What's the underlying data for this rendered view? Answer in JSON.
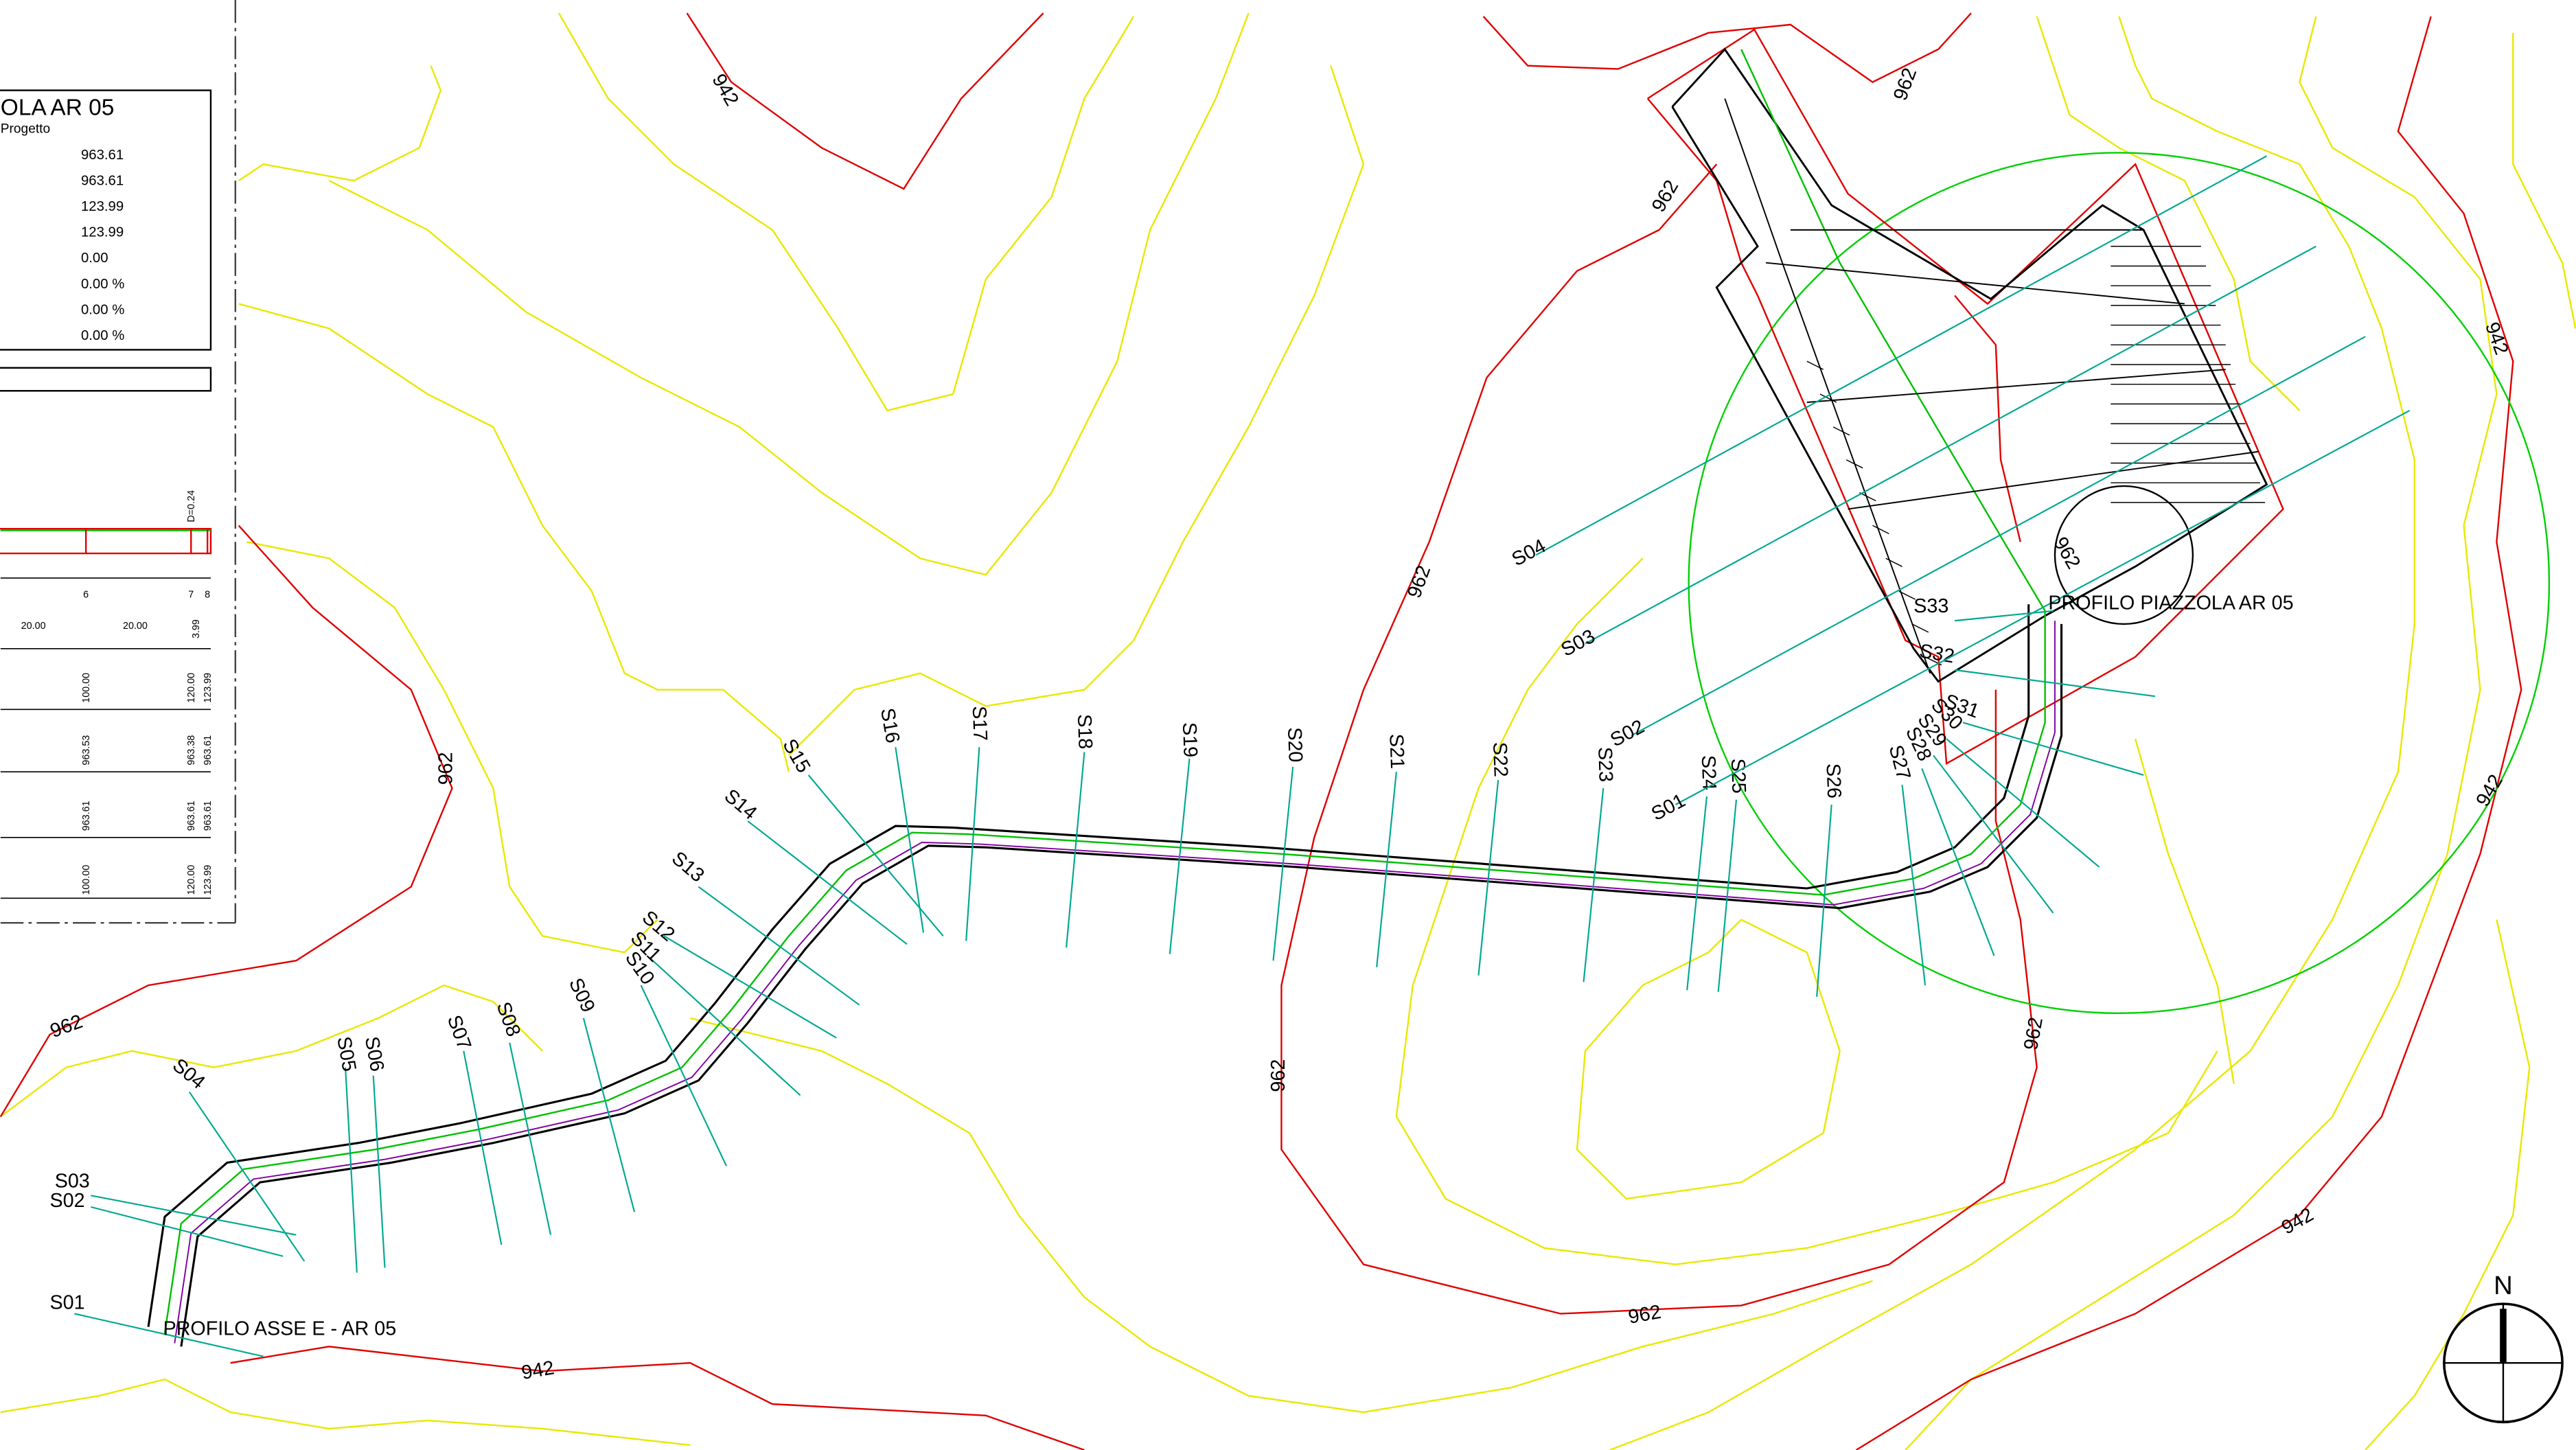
{
  "panel": {
    "title": "OLA AR 05",
    "subtitle": "Progetto",
    "rows": [
      "963.61",
      "963.61",
      "123.99",
      "123.99",
      "0.00",
      "0.00 %",
      "0.00 %",
      "0.00 %"
    ]
  },
  "profile": {
    "grade": "D=0.24",
    "stations": [
      "6",
      "7",
      "8"
    ],
    "distances": [
      "20.00",
      "20.00",
      "3.99"
    ],
    "progressive": [
      "100.00",
      "120.00",
      "123.99"
    ],
    "terrain": [
      "963.53",
      "963.38",
      "963.61"
    ],
    "design": [
      "963.61",
      "963.61",
      "963.61"
    ],
    "design_progressive": [
      "100.00",
      "120.00",
      "123.99"
    ]
  },
  "road_sections": [
    "S01",
    "S02",
    "S03",
    "S04",
    "S05",
    "S06",
    "S07",
    "S08",
    "S09",
    "S10",
    "S11",
    "S12",
    "S13",
    "S14",
    "S15",
    "S16",
    "S17",
    "S18",
    "S19",
    "S20",
    "S21",
    "S22",
    "S23",
    "S24",
    "S25",
    "S26",
    "S27",
    "S28",
    "S29",
    "S30",
    "S31",
    "S32",
    "S33"
  ],
  "plaza_sections": [
    "S01",
    "S02",
    "S03",
    "S04"
  ],
  "contour_labels": [
    "942",
    "962",
    "962",
    "962",
    "962",
    "962",
    "962",
    "962",
    "962",
    "942",
    "942",
    "942",
    "942",
    "962"
  ],
  "annotations": {
    "plaza_profile": "PROFILO PIAZZOLA AR 05",
    "road_profile": "PROFILO ASSE E - AR 05"
  },
  "north": "N"
}
